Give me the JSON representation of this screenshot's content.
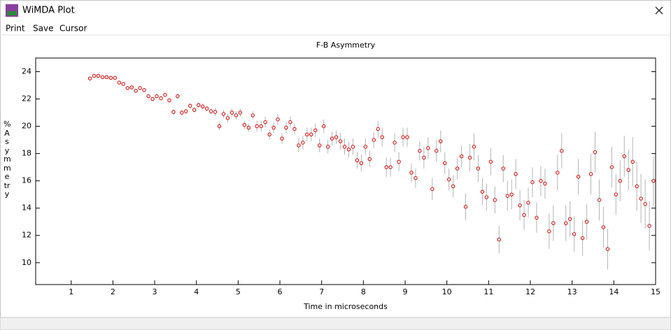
{
  "window": {
    "title": "WiMDA Plot",
    "menu": [
      "Print",
      "Save",
      "Cursor"
    ]
  },
  "chart_data": {
    "type": "scatter",
    "title": "F-B Asymmetry",
    "x_label": "Time in microseconds",
    "y_label": "% Asymmetry",
    "color": "#d00000",
    "error_color": "#b4b4b4",
    "xlim": [
      0.15,
      15
    ],
    "ylim": [
      8.4,
      25
    ],
    "xticks": [
      1,
      2,
      3,
      4,
      5,
      6,
      7,
      8,
      9,
      10,
      11,
      12,
      13,
      14,
      15
    ],
    "yticks": [
      10,
      12,
      14,
      16,
      18,
      20,
      22,
      24
    ],
    "x": [
      1.45,
      1.55,
      1.65,
      1.75,
      1.85,
      1.95,
      2.05,
      2.15,
      2.25,
      2.35,
      2.45,
      2.55,
      2.65,
      2.75,
      2.85,
      2.95,
      3.05,
      3.15,
      3.25,
      3.35,
      3.45,
      3.55,
      3.65,
      3.75,
      3.85,
      3.95,
      4.05,
      4.15,
      4.25,
      4.35,
      4.45,
      4.55,
      4.65,
      4.75,
      4.85,
      4.95,
      5.05,
      5.15,
      5.25,
      5.35,
      5.45,
      5.55,
      5.65,
      5.75,
      5.85,
      5.95,
      6.05,
      6.15,
      6.25,
      6.35,
      6.45,
      6.55,
      6.65,
      6.75,
      6.85,
      6.95,
      7.05,
      7.15,
      7.25,
      7.35,
      7.45,
      7.55,
      7.65,
      7.75,
      7.85,
      7.95,
      8.05,
      8.15,
      8.25,
      8.35,
      8.45,
      8.55,
      8.65,
      8.75,
      8.85,
      8.95,
      9.05,
      9.15,
      9.25,
      9.35,
      9.45,
      9.55,
      9.65,
      9.75,
      9.85,
      9.95,
      10.05,
      10.15,
      10.25,
      10.35,
      10.45,
      10.55,
      10.65,
      10.75,
      10.85,
      10.95,
      11.05,
      11.15,
      11.25,
      11.35,
      11.45,
      11.55,
      11.65,
      11.75,
      11.85,
      11.95,
      12.05,
      12.15,
      12.25,
      12.35,
      12.45,
      12.55,
      12.65,
      12.75,
      12.85,
      12.95,
      13.05,
      13.15,
      13.25,
      13.35,
      13.45,
      13.55,
      13.65,
      13.75,
      13.85,
      13.95,
      14.05,
      14.15,
      14.25,
      14.35,
      14.45,
      14.55,
      14.65,
      14.75,
      14.85,
      14.95
    ],
    "values": [
      23.5,
      23.7,
      23.7,
      23.6,
      23.6,
      23.55,
      23.55,
      23.2,
      23.1,
      22.8,
      22.85,
      22.6,
      22.8,
      22.65,
      22.2,
      22.0,
      22.2,
      22.05,
      22.3,
      21.9,
      21.05,
      22.2,
      21.0,
      21.1,
      21.5,
      21.2,
      21.55,
      21.45,
      21.3,
      21.1,
      21.05,
      20.0,
      20.9,
      20.6,
      21.0,
      20.8,
      21.0,
      20.1,
      19.9,
      20.8,
      20.0,
      20.0,
      20.3,
      19.4,
      19.9,
      20.5,
      19.1,
      19.9,
      20.3,
      19.8,
      18.6,
      18.8,
      19.4,
      19.4,
      19.7,
      18.6,
      20.0,
      18.5,
      19.1,
      19.2,
      18.9,
      18.5,
      18.3,
      18.5,
      17.5,
      17.3,
      18.5,
      17.6,
      19.0,
      19.8,
      19.2,
      17.0,
      17.0,
      18.8,
      17.4,
      19.2,
      19.2,
      16.6,
      16.2,
      18.2,
      17.7,
      18.4,
      15.4,
      18.2,
      18.9,
      17.3,
      16.1,
      15.6,
      16.9,
      17.8,
      14.1,
      17.7,
      18.5,
      16.9,
      15.2,
      14.8,
      17.4,
      14.6,
      11.7,
      16.9,
      14.9,
      15.0,
      16.5,
      14.2,
      13.5,
      14.4,
      15.9,
      13.3,
      16.0,
      15.8,
      12.3,
      12.9,
      16.6,
      18.2,
      12.9,
      13.2,
      12.1,
      16.3,
      11.8,
      13.0,
      16.5,
      18.1,
      14.6,
      12.6,
      11.0,
      17.0,
      15.0,
      16.0,
      17.8,
      16.8,
      17.4,
      15.6,
      14.7,
      14.3,
      12.7,
      16.0
    ],
    "errors": [
      0.1,
      0.1,
      0.1,
      0.1,
      0.1,
      0.1,
      0.1,
      0.1,
      0.1,
      0.1,
      0.15,
      0.15,
      0.15,
      0.15,
      0.15,
      0.15,
      0.15,
      0.15,
      0.15,
      0.15,
      0.2,
      0.2,
      0.2,
      0.2,
      0.2,
      0.2,
      0.2,
      0.2,
      0.2,
      0.2,
      0.3,
      0.3,
      0.3,
      0.3,
      0.3,
      0.3,
      0.3,
      0.3,
      0.3,
      0.3,
      0.4,
      0.4,
      0.4,
      0.4,
      0.4,
      0.4,
      0.4,
      0.4,
      0.4,
      0.4,
      0.5,
      0.5,
      0.5,
      0.5,
      0.5,
      0.5,
      0.5,
      0.5,
      0.5,
      0.5,
      0.6,
      0.6,
      0.6,
      0.6,
      0.6,
      0.6,
      0.6,
      0.6,
      0.6,
      0.6,
      0.7,
      0.7,
      0.7,
      0.7,
      0.7,
      0.7,
      0.7,
      0.7,
      0.7,
      0.7,
      0.8,
      0.8,
      0.8,
      0.8,
      0.8,
      0.8,
      0.8,
      0.8,
      0.8,
      0.8,
      1.0,
      1.0,
      1.0,
      1.0,
      1.0,
      1.0,
      1.0,
      1.0,
      1.0,
      1.0,
      1.1,
      1.1,
      1.1,
      1.1,
      1.1,
      1.1,
      1.1,
      1.1,
      1.1,
      1.1,
      1.3,
      1.3,
      1.3,
      1.3,
      1.3,
      1.3,
      1.3,
      1.3,
      1.3,
      1.3,
      1.5,
      1.5,
      1.5,
      1.5,
      1.5,
      1.5,
      1.5,
      1.5,
      1.5,
      1.5,
      1.8,
      1.8,
      1.8,
      1.8,
      1.8,
      1.8
    ]
  }
}
